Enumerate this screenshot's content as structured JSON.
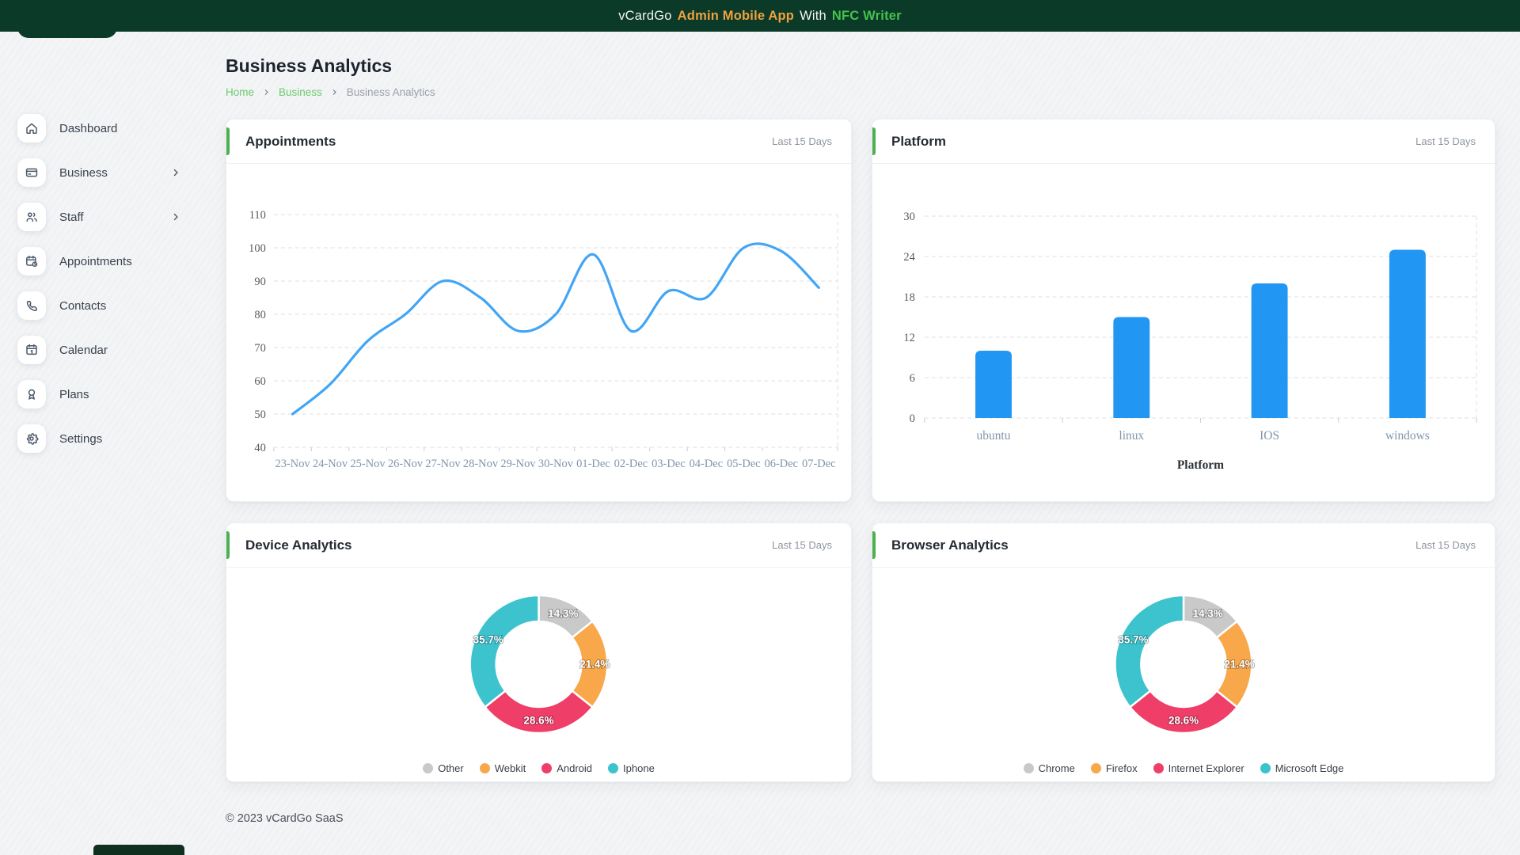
{
  "topbar": {
    "brand": "vCardGo",
    "app": "Admin Mobile App",
    "connector": "With",
    "nfc": "NFC Writer"
  },
  "sidebar": {
    "items": [
      {
        "label": "Dashboard",
        "icon": "home-icon",
        "has_submenu": false
      },
      {
        "label": "Business",
        "icon": "credit-card-icon",
        "has_submenu": true
      },
      {
        "label": "Staff",
        "icon": "users-icon",
        "has_submenu": true
      },
      {
        "label": "Appointments",
        "icon": "calendar-clock-icon",
        "has_submenu": false
      },
      {
        "label": "Contacts",
        "icon": "phone-icon",
        "has_submenu": false
      },
      {
        "label": "Calendar",
        "icon": "calendar-icon",
        "has_submenu": false
      },
      {
        "label": "Plans",
        "icon": "award-icon",
        "has_submenu": false
      },
      {
        "label": "Settings",
        "icon": "gear-icon",
        "has_submenu": false
      }
    ]
  },
  "page": {
    "title": "Business Analytics",
    "breadcrumb": [
      {
        "label": "Home",
        "link": true
      },
      {
        "label": "Business",
        "link": true
      },
      {
        "label": "Business Analytics",
        "link": false
      }
    ]
  },
  "footer": {
    "copyright": "© 2023 vCardGo SaaS"
  },
  "colors": {
    "topbar_bg": "#0b3a28",
    "accent_orange": "#f0a23f",
    "accent_green": "#45c24e",
    "breadcrumb_link": "#6dca6d",
    "card_accent": "#4caf50",
    "grid_dash": "#dcdfe3"
  },
  "chart_data": [
    {
      "type": "line",
      "title": "Appointments",
      "period": "Last 15 Days",
      "x": [
        "23-Nov",
        "24-Nov",
        "25-Nov",
        "26-Nov",
        "27-Nov",
        "28-Nov",
        "29-Nov",
        "30-Nov",
        "01-Dec",
        "02-Dec",
        "03-Dec",
        "04-Dec",
        "05-Dec",
        "06-Dec",
        "07-Dec"
      ],
      "values": [
        50,
        59,
        72,
        80,
        90,
        85,
        75,
        80,
        98,
        75,
        87,
        85,
        100,
        99,
        88
      ],
      "ylim": [
        40,
        110
      ],
      "ytick_step": 10,
      "line_color": "#42a5f5",
      "grid": "dashed",
      "legend_position": "none"
    },
    {
      "type": "bar",
      "title": "Platform",
      "period": "Last 15 Days",
      "categories": [
        "ubuntu",
        "linux",
        "IOS",
        "windows"
      ],
      "values": [
        10,
        15,
        20,
        25
      ],
      "ylim": [
        0,
        30
      ],
      "ytick_step": 6,
      "xlabel": "Platform",
      "bar_color": "#2196f3",
      "grid": "dashed",
      "legend_position": "none"
    },
    {
      "type": "pie",
      "subtype": "donut",
      "title": "Device Analytics",
      "period": "Last 15 Days",
      "labels": [
        "Other",
        "Webkit",
        "Android",
        "Iphone"
      ],
      "values": [
        14.3,
        21.4,
        28.6,
        35.7
      ],
      "percent_labels": [
        "14.3%",
        "21.4%",
        "28.6%",
        "35.7%"
      ],
      "colors": [
        "#c9c9c9",
        "#f8a74a",
        "#ef3e68",
        "#3cc3ce"
      ],
      "legend_position": "bottom"
    },
    {
      "type": "pie",
      "subtype": "donut",
      "title": "Browser Analytics",
      "period": "Last 15 Days",
      "labels": [
        "Chrome",
        "Firefox",
        "Internet Explorer",
        "Microsoft Edge"
      ],
      "values": [
        14.3,
        21.4,
        28.6,
        35.7
      ],
      "percent_labels": [
        "14.3%",
        "21.4%",
        "28.6%",
        "35.7%"
      ],
      "colors": [
        "#c9c9c9",
        "#f8a74a",
        "#ef3e68",
        "#3cc3ce"
      ],
      "legend_position": "bottom"
    }
  ]
}
